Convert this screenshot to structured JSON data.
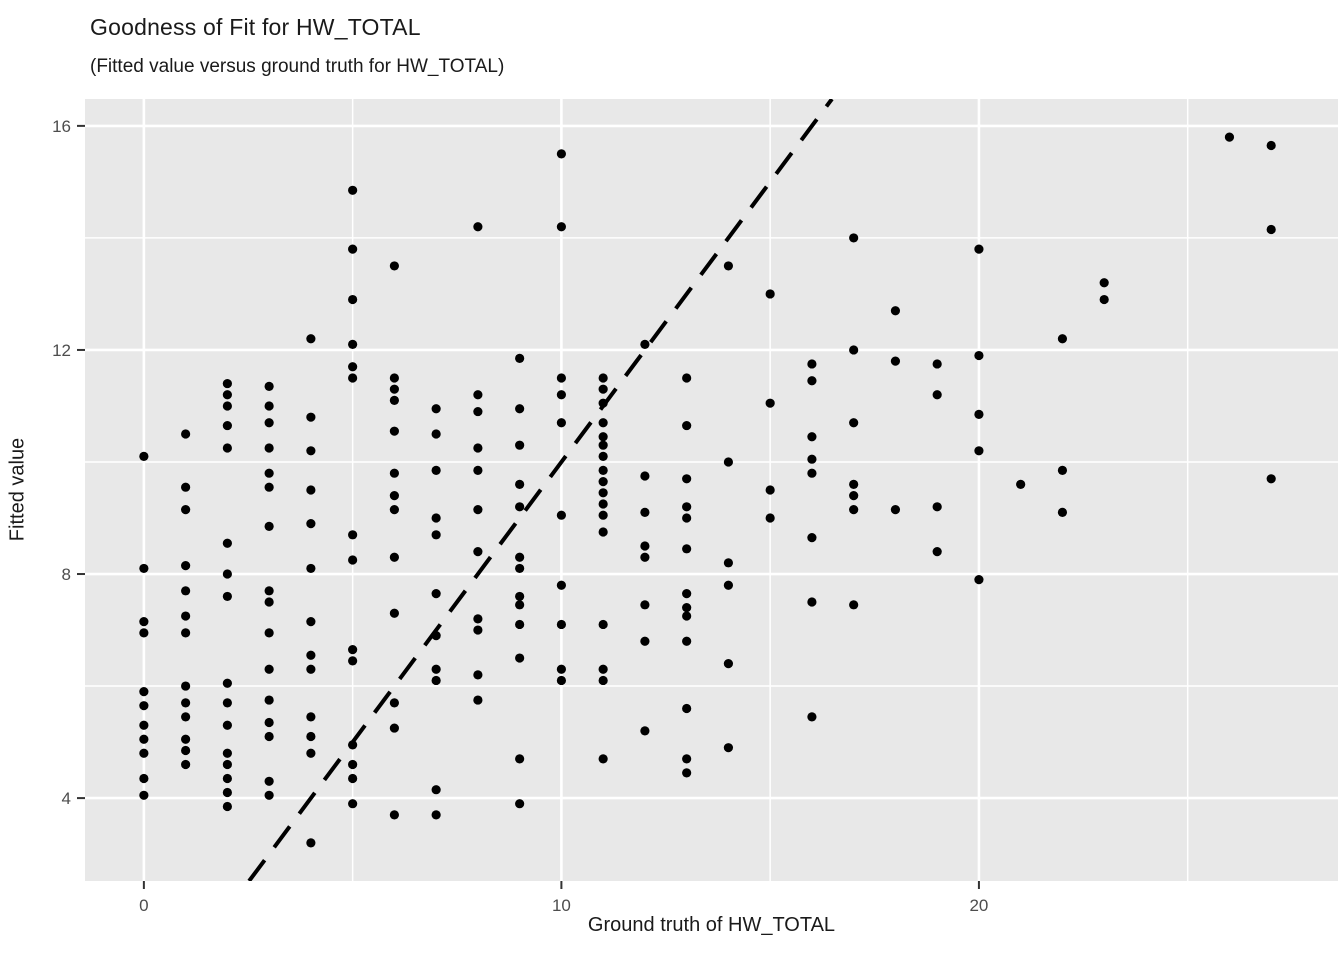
{
  "header": {
    "title": "Goodness of Fit for HW_TOTAL",
    "subtitle": "(Fitted value versus ground truth for HW_TOTAL)"
  },
  "chart_data": {
    "type": "scatter",
    "title": "Goodness of Fit for HW_TOTAL",
    "subtitle": "(Fitted value versus ground truth for HW_TOTAL)",
    "xlabel": "Ground truth of HW_TOTAL",
    "ylabel": "Fitted value",
    "xlim": [
      -1.41,
      28.6
    ],
    "ylim": [
      2.52,
      16.48
    ],
    "x_ticks": [
      0,
      10,
      20
    ],
    "x_tick_labels": [
      "0",
      "10",
      "20"
    ],
    "x_minor_ticks": [
      5,
      15,
      25
    ],
    "y_ticks": [
      4,
      8,
      12,
      16
    ],
    "y_tick_labels": [
      "4",
      "8",
      "12",
      "16"
    ],
    "y_minor_ticks": [
      6,
      10,
      14
    ],
    "grid": true,
    "legend": "none",
    "panel_bg": "#E8E8E8",
    "grid_color": "#FFFFFF",
    "point_color": "#000000",
    "tick_label_color": "#4D4D4D",
    "tick_mark_color": "#333333",
    "identity_line": {
      "type": "dashed",
      "slope": 1,
      "intercept": 0,
      "color": "#000000",
      "width": 4
    },
    "points": [
      [
        0,
        10.1
      ],
      [
        0,
        8.1
      ],
      [
        0,
        7.15
      ],
      [
        0,
        6.95
      ],
      [
        0,
        5.9
      ],
      [
        0,
        5.65
      ],
      [
        0,
        5.3
      ],
      [
        0,
        5.05
      ],
      [
        0,
        4.8
      ],
      [
        0,
        4.35
      ],
      [
        0,
        4.05
      ],
      [
        1,
        10.5
      ],
      [
        1,
        9.55
      ],
      [
        1,
        9.15
      ],
      [
        1,
        8.15
      ],
      [
        1,
        7.7
      ],
      [
        1,
        7.25
      ],
      [
        1,
        6.95
      ],
      [
        1,
        6.0
      ],
      [
        1,
        5.7
      ],
      [
        1,
        5.45
      ],
      [
        1,
        5.05
      ],
      [
        1,
        4.85
      ],
      [
        1,
        4.6
      ],
      [
        2,
        11.4
      ],
      [
        2,
        11.2
      ],
      [
        2,
        11.0
      ],
      [
        2,
        10.65
      ],
      [
        2,
        10.25
      ],
      [
        2,
        8.55
      ],
      [
        2,
        8.0
      ],
      [
        2,
        7.6
      ],
      [
        2,
        6.05
      ],
      [
        2,
        5.7
      ],
      [
        2,
        5.3
      ],
      [
        2,
        4.8
      ],
      [
        2,
        4.6
      ],
      [
        2,
        4.35
      ],
      [
        2,
        4.1
      ],
      [
        2,
        3.85
      ],
      [
        3,
        11.35
      ],
      [
        3,
        11.0
      ],
      [
        3,
        10.7
      ],
      [
        3,
        10.25
      ],
      [
        3,
        9.8
      ],
      [
        3,
        9.55
      ],
      [
        3,
        8.85
      ],
      [
        3,
        7.7
      ],
      [
        3,
        7.5
      ],
      [
        3,
        6.95
      ],
      [
        3,
        6.3
      ],
      [
        3,
        5.75
      ],
      [
        3,
        5.35
      ],
      [
        3,
        5.1
      ],
      [
        3,
        4.3
      ],
      [
        3,
        4.05
      ],
      [
        4,
        12.2
      ],
      [
        4,
        10.8
      ],
      [
        4,
        10.2
      ],
      [
        4,
        9.5
      ],
      [
        4,
        8.9
      ],
      [
        4,
        8.1
      ],
      [
        4,
        7.15
      ],
      [
        4,
        6.55
      ],
      [
        4,
        6.3
      ],
      [
        4,
        5.45
      ],
      [
        4,
        5.1
      ],
      [
        4,
        4.8
      ],
      [
        4,
        3.2
      ],
      [
        5,
        14.85
      ],
      [
        5,
        13.8
      ],
      [
        5,
        12.9
      ],
      [
        5,
        12.1
      ],
      [
        5,
        11.7
      ],
      [
        5,
        11.5
      ],
      [
        5,
        8.7
      ],
      [
        5,
        8.25
      ],
      [
        5,
        6.65
      ],
      [
        5,
        6.45
      ],
      [
        5,
        4.95
      ],
      [
        5,
        4.6
      ],
      [
        5,
        4.35
      ],
      [
        5,
        3.9
      ],
      [
        6,
        13.5
      ],
      [
        6,
        11.5
      ],
      [
        6,
        11.3
      ],
      [
        6,
        11.1
      ],
      [
        6,
        10.55
      ],
      [
        6,
        9.8
      ],
      [
        6,
        9.4
      ],
      [
        6,
        9.15
      ],
      [
        6,
        8.3
      ],
      [
        6,
        7.3
      ],
      [
        6,
        5.7
      ],
      [
        6,
        5.25
      ],
      [
        6,
        3.7
      ],
      [
        7,
        10.95
      ],
      [
        7,
        10.5
      ],
      [
        7,
        9.85
      ],
      [
        7,
        9.0
      ],
      [
        7,
        8.7
      ],
      [
        7,
        7.65
      ],
      [
        7,
        6.9
      ],
      [
        7,
        6.3
      ],
      [
        7,
        6.1
      ],
      [
        7,
        4.15
      ],
      [
        7,
        3.7
      ],
      [
        8,
        14.2
      ],
      [
        8,
        11.2
      ],
      [
        8,
        10.9
      ],
      [
        8,
        10.25
      ],
      [
        8,
        9.85
      ],
      [
        8,
        9.15
      ],
      [
        8,
        8.4
      ],
      [
        8,
        7.2
      ],
      [
        8,
        7.0
      ],
      [
        8,
        6.2
      ],
      [
        8,
        5.75
      ],
      [
        9,
        11.85
      ],
      [
        9,
        10.95
      ],
      [
        9,
        10.3
      ],
      [
        9,
        9.6
      ],
      [
        9,
        9.2
      ],
      [
        9,
        8.3
      ],
      [
        9,
        8.1
      ],
      [
        9,
        7.6
      ],
      [
        9,
        7.45
      ],
      [
        9,
        7.1
      ],
      [
        9,
        6.5
      ],
      [
        9,
        4.7
      ],
      [
        9,
        3.9
      ],
      [
        10,
        15.5
      ],
      [
        10,
        14.2
      ],
      [
        10,
        11.5
      ],
      [
        10,
        11.2
      ],
      [
        10,
        10.7
      ],
      [
        10,
        9.05
      ],
      [
        10,
        7.8
      ],
      [
        10,
        7.1
      ],
      [
        10,
        6.3
      ],
      [
        10,
        6.1
      ],
      [
        11,
        11.5
      ],
      [
        11,
        11.3
      ],
      [
        11,
        11.05
      ],
      [
        11,
        10.7
      ],
      [
        11,
        10.45
      ],
      [
        11,
        10.3
      ],
      [
        11,
        10.1
      ],
      [
        11,
        9.85
      ],
      [
        11,
        9.65
      ],
      [
        11,
        9.45
      ],
      [
        11,
        9.25
      ],
      [
        11,
        9.05
      ],
      [
        11,
        8.75
      ],
      [
        11,
        7.1
      ],
      [
        11,
        6.3
      ],
      [
        11,
        6.1
      ],
      [
        11,
        4.7
      ],
      [
        12,
        12.1
      ],
      [
        12,
        9.75
      ],
      [
        12,
        9.1
      ],
      [
        12,
        8.5
      ],
      [
        12,
        8.3
      ],
      [
        12,
        7.45
      ],
      [
        12,
        6.8
      ],
      [
        12,
        5.2
      ],
      [
        13,
        11.5
      ],
      [
        13,
        10.65
      ],
      [
        13,
        9.7
      ],
      [
        13,
        9.2
      ],
      [
        13,
        9.0
      ],
      [
        13,
        8.45
      ],
      [
        13,
        7.65
      ],
      [
        13,
        7.4
      ],
      [
        13,
        7.25
      ],
      [
        13,
        6.8
      ],
      [
        13,
        5.6
      ],
      [
        13,
        4.7
      ],
      [
        13,
        4.45
      ],
      [
        14,
        13.5
      ],
      [
        14,
        10.0
      ],
      [
        14,
        8.2
      ],
      [
        14,
        7.8
      ],
      [
        14,
        6.4
      ],
      [
        14,
        4.9
      ],
      [
        15,
        13.0
      ],
      [
        15,
        11.05
      ],
      [
        15,
        9.5
      ],
      [
        15,
        9.0
      ],
      [
        16,
        11.75
      ],
      [
        16,
        11.45
      ],
      [
        16,
        10.45
      ],
      [
        16,
        10.05
      ],
      [
        16,
        9.8
      ],
      [
        16,
        8.65
      ],
      [
        16,
        7.5
      ],
      [
        16,
        5.45
      ],
      [
        17,
        14.0
      ],
      [
        17,
        12.0
      ],
      [
        17,
        10.7
      ],
      [
        17,
        9.6
      ],
      [
        17,
        9.4
      ],
      [
        17,
        9.15
      ],
      [
        17,
        7.45
      ],
      [
        18,
        12.7
      ],
      [
        18,
        11.8
      ],
      [
        18,
        9.15
      ],
      [
        19,
        11.75
      ],
      [
        19,
        11.2
      ],
      [
        19,
        9.2
      ],
      [
        19,
        8.4
      ],
      [
        20,
        13.8
      ],
      [
        20,
        11.9
      ],
      [
        20,
        10.85
      ],
      [
        20,
        10.2
      ],
      [
        20,
        7.9
      ],
      [
        21,
        9.6
      ],
      [
        22,
        12.2
      ],
      [
        22,
        9.85
      ],
      [
        22,
        9.1
      ],
      [
        23,
        13.2
      ],
      [
        23,
        12.9
      ],
      [
        26,
        15.8
      ],
      [
        27,
        15.65
      ],
      [
        27,
        14.15
      ],
      [
        27,
        9.7
      ]
    ]
  }
}
